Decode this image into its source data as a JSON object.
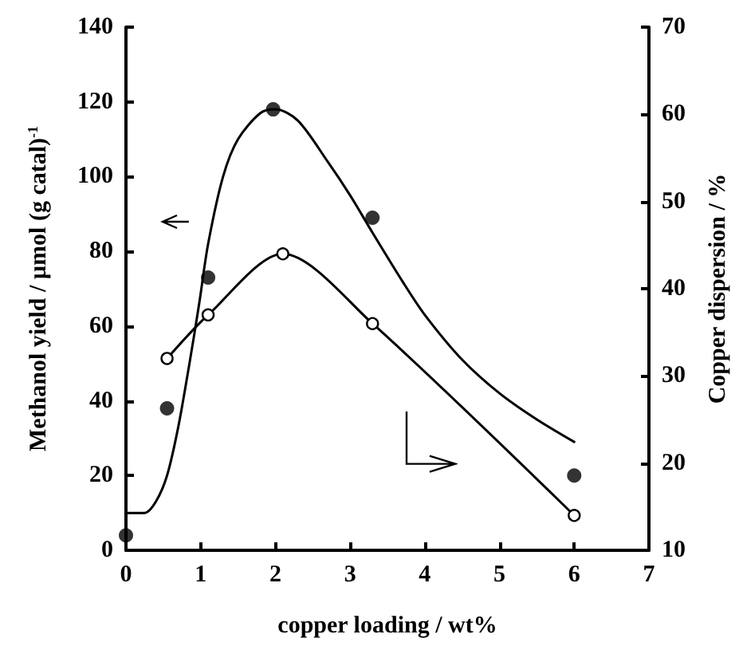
{
  "chart_data": {
    "type": "scatter",
    "xlabel": "copper loading / wt%",
    "ylabel": "Methanol yield / µmol (g catal)$^{-1}$",
    "y2label": "Copper dispersion / %",
    "xlim": [
      0,
      7
    ],
    "xticks": [
      0,
      1,
      2,
      3,
      4,
      5,
      6,
      7
    ],
    "ylim": [
      0,
      140
    ],
    "yticks": [
      0,
      20,
      40,
      60,
      80,
      100,
      120,
      140
    ],
    "y2lim": [
      10,
      70
    ],
    "y2ticks": [
      10,
      20,
      30,
      40,
      50,
      60,
      70
    ],
    "grid": false,
    "marker": "circle",
    "series": [
      {
        "type": "line",
        "marker": "none",
        "color": "#000000",
        "x": [
          0,
          0.25,
          0.4,
          0.55,
          0.7,
          0.85,
          0.98,
          1.1,
          1.3,
          1.5,
          1.8,
          2,
          2.3,
          2.7,
          3,
          3.3,
          3.7,
          4,
          4.5,
          5,
          5.5,
          6
        ],
        "values": [
          10,
          10,
          13,
          20,
          33,
          50,
          66,
          82,
          100,
          110,
          117,
          118,
          115,
          104,
          95,
          85,
          72,
          63,
          51,
          42,
          35,
          29
        ]
      },
      {
        "color": "#000000",
        "x": [
          0,
          0.55,
          1.1,
          1.97,
          3.3,
          6
        ],
        "values": [
          4,
          38,
          73,
          118,
          89,
          20
        ]
      },
      {
        "type": "line",
        "axis": "y2",
        "color": "#000000",
        "x": [
          0.55,
          1.1,
          2.1,
          3.3,
          6
        ],
        "values": [
          32,
          37,
          44,
          36,
          14
        ]
      }
    ]
  }
}
